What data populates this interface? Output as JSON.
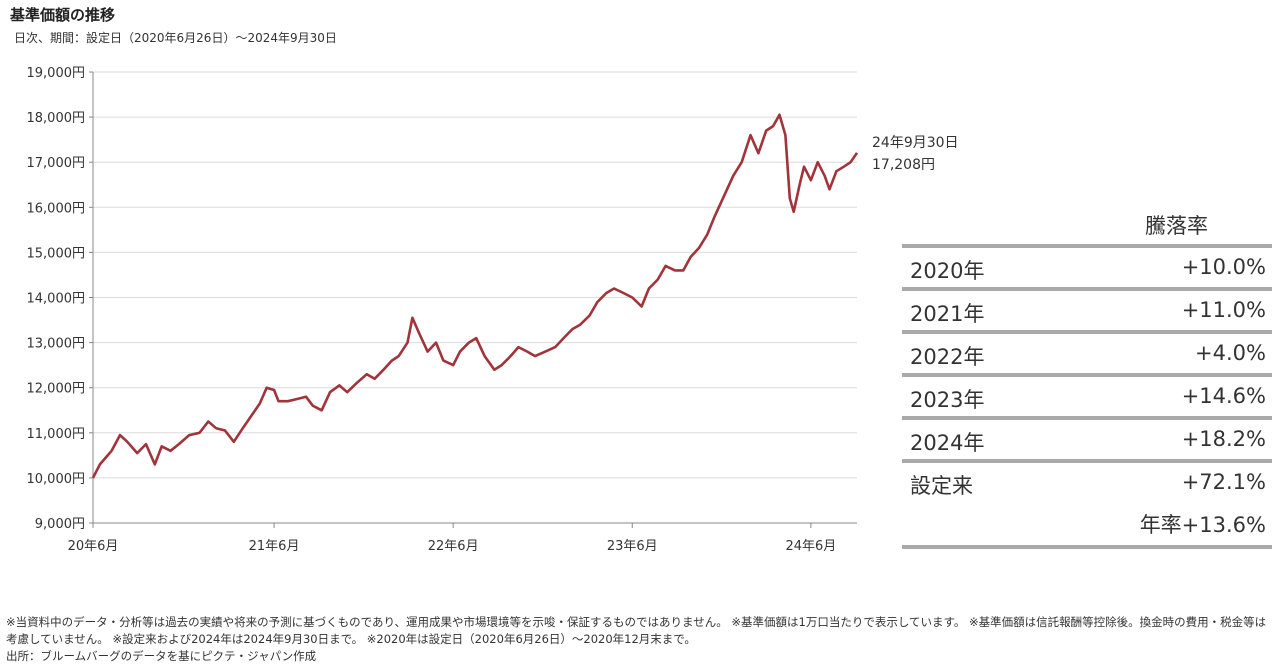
{
  "title": "基準価額の推移",
  "subtitle": "日次、期間：設定日（2020年6月26日）～2024年9月30日",
  "end_label": {
    "date": "24年9月30日",
    "value": "17,208円"
  },
  "chart_data": {
    "type": "line",
    "ylim": [
      9000,
      19000
    ],
    "yticks": [
      {
        "value": 19000,
        "label": "19,000円"
      },
      {
        "value": 18000,
        "label": "18,000円"
      },
      {
        "value": 17000,
        "label": "17,000円"
      },
      {
        "value": 16000,
        "label": "16,000円"
      },
      {
        "value": 15000,
        "label": "15,000円"
      },
      {
        "value": 14000,
        "label": "14,000円"
      },
      {
        "value": 13000,
        "label": "13,000円"
      },
      {
        "value": 12000,
        "label": "12,000円"
      },
      {
        "value": 11000,
        "label": "11,000円"
      },
      {
        "value": 10000,
        "label": "10,000円"
      },
      {
        "value": 9000,
        "label": "9,000円"
      }
    ],
    "xlim": [
      "2020-06-26",
      "2024-09-30"
    ],
    "xticks": [
      {
        "date": "2020-06-26",
        "label": "20年6月"
      },
      {
        "date": "2021-06-30",
        "label": "21年6月"
      },
      {
        "date": "2022-06-30",
        "label": "22年6月"
      },
      {
        "date": "2023-06-30",
        "label": "23年6月"
      },
      {
        "date": "2024-06-28",
        "label": "24年6月"
      }
    ],
    "grid": true,
    "series": [
      {
        "color": "#a0343a",
        "points": [
          [
            "2020-06-26",
            10000
          ],
          [
            "2020-07-10",
            10300
          ],
          [
            "2020-08-03",
            10600
          ],
          [
            "2020-08-20",
            10950
          ],
          [
            "2020-09-04",
            10800
          ],
          [
            "2020-09-24",
            10550
          ],
          [
            "2020-10-12",
            10750
          ],
          [
            "2020-10-30",
            10300
          ],
          [
            "2020-11-13",
            10700
          ],
          [
            "2020-12-01",
            10600
          ],
          [
            "2020-12-18",
            10750
          ],
          [
            "2021-01-08",
            10950
          ],
          [
            "2021-01-29",
            11000
          ],
          [
            "2021-02-16",
            11250
          ],
          [
            "2021-03-04",
            11100
          ],
          [
            "2021-03-22",
            11050
          ],
          [
            "2021-04-09",
            10800
          ],
          [
            "2021-04-27",
            11100
          ],
          [
            "2021-05-13",
            11350
          ],
          [
            "2021-06-01",
            11650
          ],
          [
            "2021-06-15",
            12000
          ],
          [
            "2021-06-30",
            11950
          ],
          [
            "2021-07-09",
            11700
          ],
          [
            "2021-07-28",
            11700
          ],
          [
            "2021-08-16",
            11750
          ],
          [
            "2021-09-03",
            11800
          ],
          [
            "2021-09-17",
            11600
          ],
          [
            "2021-10-05",
            11500
          ],
          [
            "2021-10-22",
            11900
          ],
          [
            "2021-11-10",
            12050
          ],
          [
            "2021-11-26",
            11900
          ],
          [
            "2021-12-15",
            12100
          ],
          [
            "2022-01-05",
            12300
          ],
          [
            "2022-01-21",
            12200
          ],
          [
            "2022-02-08",
            12400
          ],
          [
            "2022-02-25",
            12600
          ],
          [
            "2022-03-11",
            12700
          ],
          [
            "2022-03-29",
            13000
          ],
          [
            "2022-04-08",
            13550
          ],
          [
            "2022-04-22",
            13200
          ],
          [
            "2022-05-09",
            12800
          ],
          [
            "2022-05-26",
            13000
          ],
          [
            "2022-06-10",
            12600
          ],
          [
            "2022-06-30",
            12500
          ],
          [
            "2022-07-14",
            12800
          ],
          [
            "2022-08-01",
            13000
          ],
          [
            "2022-08-16",
            13100
          ],
          [
            "2022-09-02",
            12700
          ],
          [
            "2022-09-22",
            12400
          ],
          [
            "2022-10-07",
            12500
          ],
          [
            "2022-10-25",
            12700
          ],
          [
            "2022-11-10",
            12900
          ],
          [
            "2022-11-28",
            12800
          ],
          [
            "2022-12-14",
            12700
          ],
          [
            "2023-01-04",
            12800
          ],
          [
            "2023-01-24",
            12900
          ],
          [
            "2023-02-10",
            13100
          ],
          [
            "2023-02-28",
            13300
          ],
          [
            "2023-03-16",
            13400
          ],
          [
            "2023-04-04",
            13600
          ],
          [
            "2023-04-20",
            13900
          ],
          [
            "2023-05-08",
            14100
          ],
          [
            "2023-05-24",
            14200
          ],
          [
            "2023-06-12",
            14100
          ],
          [
            "2023-06-30",
            14000
          ],
          [
            "2023-07-19",
            13800
          ],
          [
            "2023-08-03",
            14200
          ],
          [
            "2023-08-21",
            14400
          ],
          [
            "2023-09-06",
            14700
          ],
          [
            "2023-09-25",
            14600
          ],
          [
            "2023-10-12",
            14600
          ],
          [
            "2023-10-27",
            14900
          ],
          [
            "2023-11-13",
            15100
          ],
          [
            "2023-11-30",
            15400
          ],
          [
            "2023-12-15",
            15800
          ],
          [
            "2024-01-05",
            16300
          ],
          [
            "2024-01-22",
            16700
          ],
          [
            "2024-02-08",
            17000
          ],
          [
            "2024-02-26",
            17600
          ],
          [
            "2024-03-13",
            17200
          ],
          [
            "2024-03-29",
            17700
          ],
          [
            "2024-04-12",
            17800
          ],
          [
            "2024-04-25",
            18050
          ],
          [
            "2024-05-07",
            17600
          ],
          [
            "2024-05-16",
            16200
          ],
          [
            "2024-05-24",
            15900
          ],
          [
            "2024-06-05",
            16500
          ],
          [
            "2024-06-14",
            16900
          ],
          [
            "2024-06-28",
            16600
          ],
          [
            "2024-07-12",
            17000
          ],
          [
            "2024-07-26",
            16700
          ],
          [
            "2024-08-05",
            16400
          ],
          [
            "2024-08-19",
            16800
          ],
          [
            "2024-09-03",
            16900
          ],
          [
            "2024-09-17",
            17000
          ],
          [
            "2024-09-30",
            17208
          ]
        ]
      }
    ]
  },
  "returns_table": {
    "header": "騰落率",
    "rows": [
      {
        "label": "2020年",
        "value": "+10.0%"
      },
      {
        "label": "2021年",
        "value": "+11.0%"
      },
      {
        "label": "2022年",
        "value": "+4.0%"
      },
      {
        "label": "2023年",
        "value": "+14.6%"
      },
      {
        "label": "2024年",
        "value": "+18.2%"
      },
      {
        "label": "設定来",
        "value": "+72.1%"
      }
    ],
    "annualized": "年率+13.6%"
  },
  "notes": [
    "※当資料中のデータ・分析等は過去の実績や将来の予測に基づくものであり、運用成果や市場環境等を示唆・保証するものではありません。 ※基準価額は1万口当たりで表示しています。 ※基準価額は信託報酬等控除後。換金時の費用・税金等は考慮していません。 ※設定来および2024年は2024年9月30日まで。 ※2020年は設定日（2020年6月26日）～2020年12月末まで。",
    "出所：ブルームバーグのデータを基にピクテ・ジャパン作成"
  ]
}
